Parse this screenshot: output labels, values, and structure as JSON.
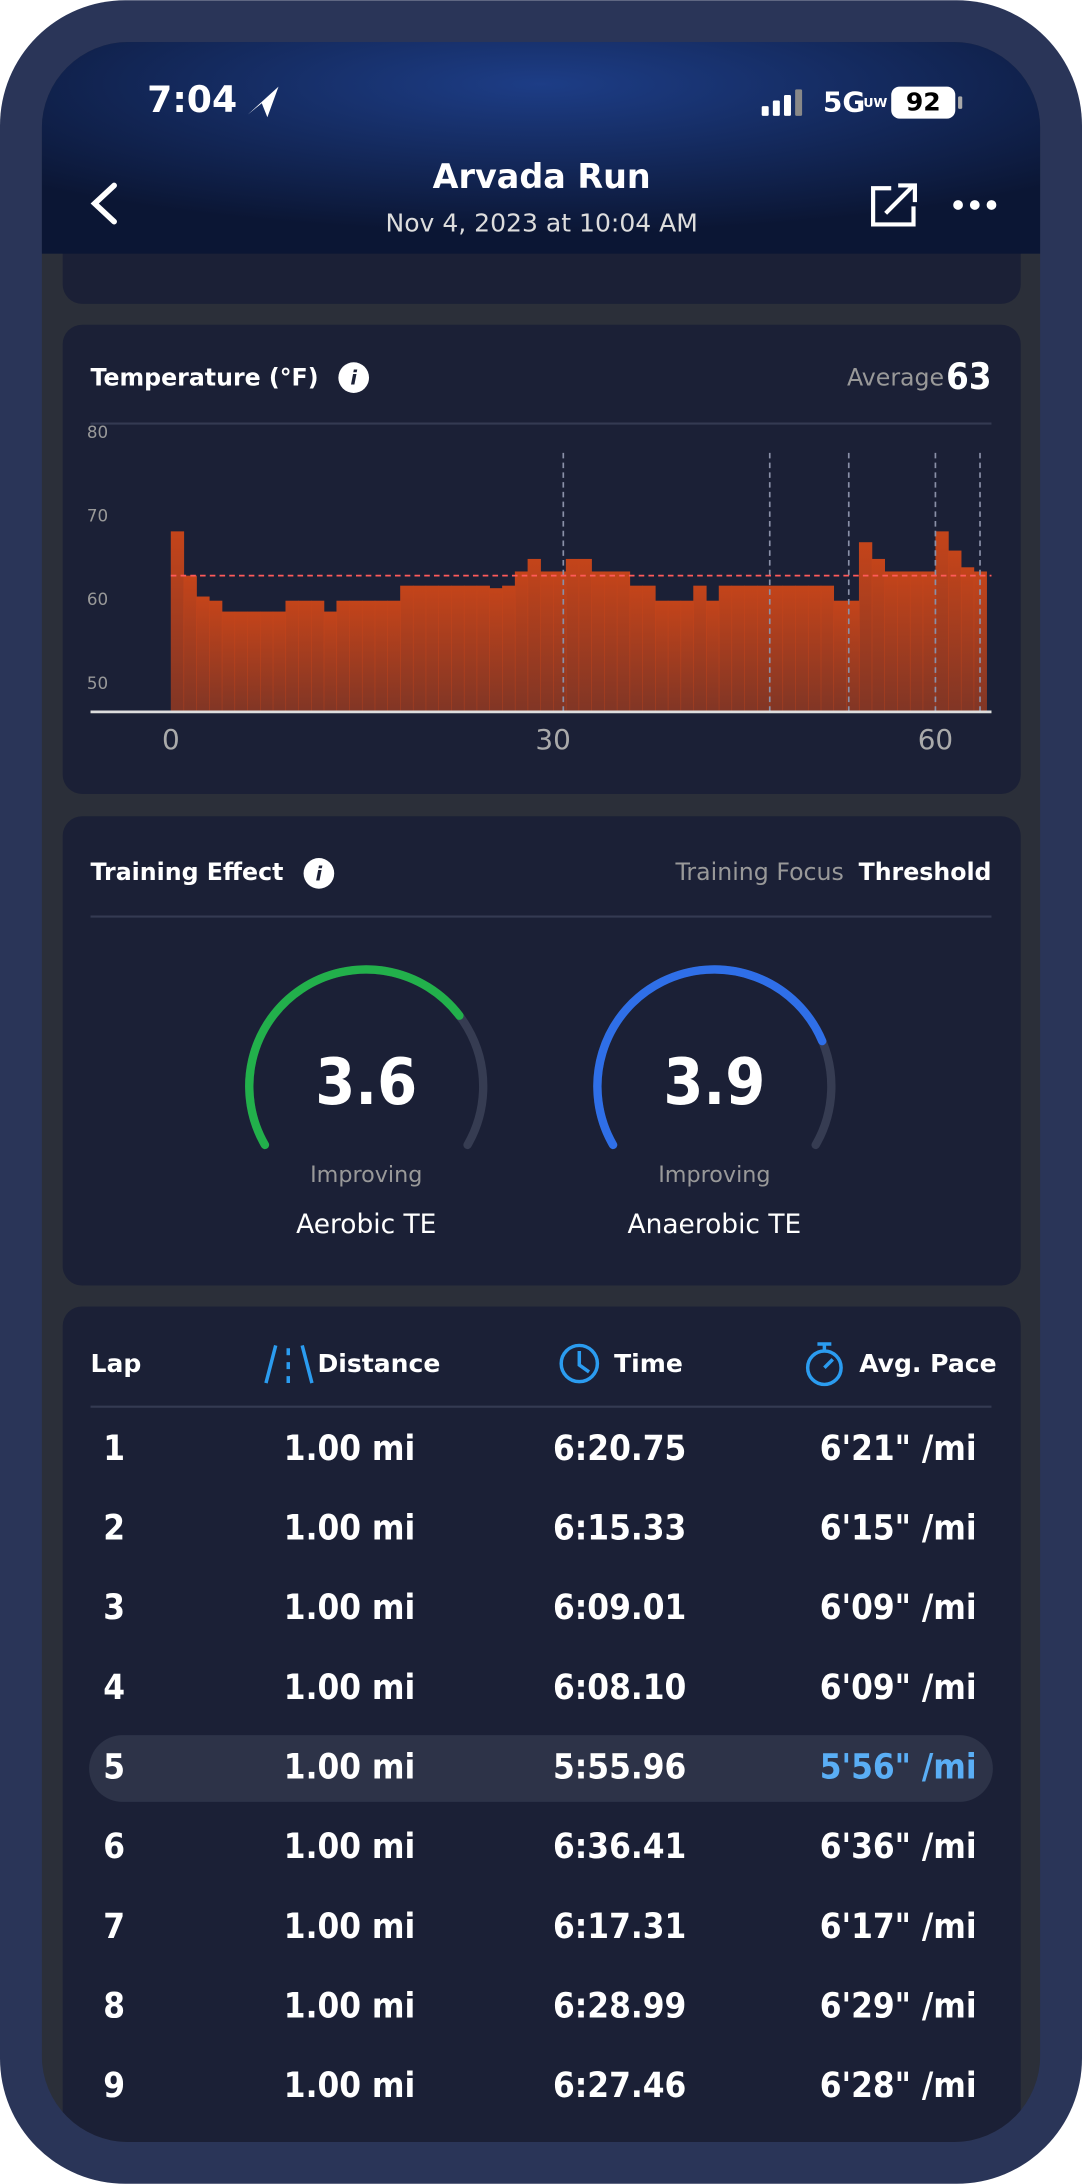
{
  "status_bar": {
    "time": "7:04",
    "network": "5G",
    "network_sub": "UW",
    "battery": "92"
  },
  "header": {
    "title": "Arvada Run",
    "subtitle": "Nov 4, 2023 at 10:04 AM"
  },
  "chart_data": {
    "type": "bar",
    "title": "Temperature (°F)",
    "average_label": "Average",
    "average": 63,
    "x": [
      0,
      1,
      2,
      3,
      4,
      5,
      6,
      7,
      8,
      9,
      10,
      11,
      12,
      13,
      14,
      15,
      16,
      17,
      18,
      19,
      20,
      21,
      22,
      23,
      24,
      25,
      26,
      27,
      28,
      29,
      30,
      31,
      32,
      33,
      34,
      35,
      36,
      37,
      38,
      39,
      40,
      41,
      42,
      43,
      44,
      45,
      46,
      47,
      48,
      49,
      50,
      51,
      52,
      53,
      54,
      55,
      56,
      57,
      58,
      59,
      60,
      61,
      62,
      63
    ],
    "values": [
      68.3,
      63,
      60.5,
      60,
      58.7,
      58.7,
      58.7,
      58.7,
      58.7,
      60,
      60,
      60,
      58.7,
      60,
      60,
      60,
      60,
      60,
      61.8,
      61.8,
      61.8,
      61.8,
      61.8,
      61.8,
      61.8,
      61.5,
      61.8,
      63.5,
      65,
      63.5,
      63.5,
      65,
      65,
      63.5,
      63.5,
      63.5,
      61.8,
      61.8,
      60,
      60,
      60,
      61.8,
      60,
      61.8,
      61.8,
      61.8,
      61.8,
      61.8,
      61.8,
      61.8,
      61.8,
      61.8,
      60,
      60,
      67,
      65,
      63.5,
      63.5,
      63.5,
      63.5,
      68.3,
      66,
      64,
      63.5
    ],
    "color": "#c4441a",
    "xlim": [
      -6.3,
      64.4
    ],
    "ylim": [
      46.7,
      81.2
    ],
    "xticks": [
      0,
      30,
      60
    ],
    "yticks": [
      50,
      60,
      70,
      80
    ],
    "markers": [
      30.8,
      47,
      53.2,
      60,
      63.5
    ]
  },
  "training_effect": {
    "title": "Training Effect",
    "focus_label": "Training Focus",
    "focus": "Threshold",
    "scale": [
      0,
      5
    ],
    "gauges": [
      {
        "value": 3.6,
        "status": "Improving",
        "label": "Aerobic TE",
        "color": "#22b04b"
      },
      {
        "value": 3.9,
        "status": "Improving",
        "label": "Anaerobic TE",
        "color": "#2f6fe8"
      }
    ]
  },
  "laps": {
    "columns": [
      "Lap",
      "Distance",
      "Time",
      "Avg. Pace"
    ],
    "highlighted": 4,
    "rows": [
      [
        "1",
        "1.00 mi",
        "6:20.75",
        "6'21\" /mi"
      ],
      [
        "2",
        "1.00 mi",
        "6:15.33",
        "6'15\" /mi"
      ],
      [
        "3",
        "1.00 mi",
        "6:09.01",
        "6'09\" /mi"
      ],
      [
        "4",
        "1.00 mi",
        "6:08.10",
        "6'09\" /mi"
      ],
      [
        "5",
        "1.00 mi",
        "5:55.96",
        "5'56\" /mi"
      ],
      [
        "6",
        "1.00 mi",
        "6:36.41",
        "6'36\" /mi"
      ],
      [
        "7",
        "1.00 mi",
        "6:17.31",
        "6'17\" /mi"
      ],
      [
        "8",
        "1.00 mi",
        "6:28.99",
        "6'29\" /mi"
      ],
      [
        "9",
        "1.00 mi",
        "6:27.46",
        "6'28\" /mi"
      ]
    ]
  }
}
